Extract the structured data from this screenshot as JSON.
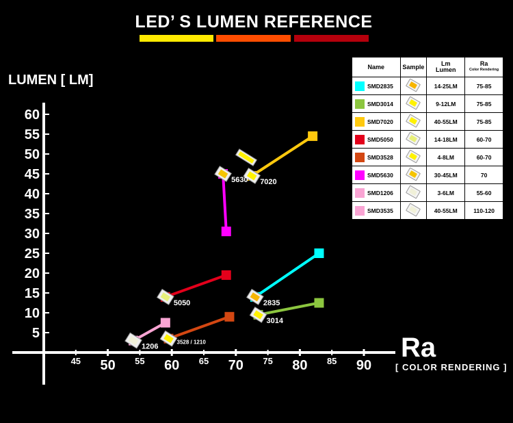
{
  "header": {
    "title": "LED’ S LUMEN REFERENCE",
    "bar_colors": [
      "#ffea00",
      "#ff4d00",
      "#b5000c"
    ]
  },
  "axes": {
    "ylabel": "LUMEN [ LM]",
    "xlabel": "Ra",
    "xlabel_sub": "[ COLOR RENDERING ]"
  },
  "legend": {
    "headers": {
      "name": "Name",
      "sample": "Sample",
      "lm": "Lm",
      "lm_sub": "Lumen",
      "ra": "Ra",
      "ra_sub": "Color Rendering"
    },
    "rows": [
      {
        "name": "SMD2835",
        "color": "#00ffff",
        "lm": "14-25LM",
        "ra": "75-85",
        "chip": "#f7b500"
      },
      {
        "name": "SMD3014",
        "color": "#8cc63f",
        "lm": "9-12LM",
        "ra": "75-85",
        "chip": "#fff200"
      },
      {
        "name": "SMD7020",
        "color": "#ffc90e",
        "lm": "40-55LM",
        "ra": "75-85",
        "chip": "#fff200"
      },
      {
        "name": "SMD5050",
        "color": "#e3001b",
        "lm": "14-18LM",
        "ra": "60-70",
        "chip": "#e8f07a"
      },
      {
        "name": "SMD3528",
        "color": "#d34712",
        "lm": "4-8LM",
        "ra": "60-70",
        "chip": "#fff200"
      },
      {
        "name": "SMD5630",
        "color": "#ff00ff",
        "lm": "30-45LM",
        "ra": "70",
        "chip": "#f5c400"
      },
      {
        "name": "SMD1206",
        "color": "#f9a4d3",
        "lm": "3-6LM",
        "ra": "55-60",
        "chip": "#f0f0d8"
      },
      {
        "name": "SMD3535",
        "color": "#f9a4d3",
        "lm": "40-55LM",
        "ra": "110-120",
        "chip": "#f0f0d8"
      }
    ]
  },
  "chart_data": {
    "type": "line",
    "title": "LED’ S LUMEN REFERENCE",
    "ylabel": "LUMEN [ LM]",
    "xlabel": "Ra [ COLOR RENDERING ]",
    "xlim": [
      40,
      95
    ],
    "ylim": [
      0,
      65
    ],
    "y_major_ticks": [
      "5",
      "10",
      "15",
      "20",
      "25",
      "30",
      "35",
      "40",
      "45",
      "50",
      "55",
      "60"
    ],
    "y_minor_ticks": [
      "5",
      "15",
      "25",
      "35",
      "45",
      "55"
    ],
    "x_major_ticks": [
      "50",
      "60",
      "70",
      "80",
      "90"
    ],
    "x_minor_ticks": [
      "45",
      "55",
      "65",
      "75",
      "85"
    ],
    "grid": false,
    "legend_position": "top-right",
    "series": [
      {
        "name": "SMD2835",
        "label": "2835",
        "color": "#00ffff",
        "points": [
          [
            73,
            14
          ],
          [
            83,
            25
          ]
        ],
        "chip": "#f7b500"
      },
      {
        "name": "SMD3014",
        "label": "3014",
        "color": "#8cc63f",
        "points": [
          [
            73.5,
            9.5
          ],
          [
            83,
            12.5
          ]
        ],
        "chip": "#fff200"
      },
      {
        "name": "SMD7020",
        "label": "7020",
        "color": "#ffc90e",
        "points": [
          [
            72.5,
            44.5
          ],
          [
            82,
            54.5
          ]
        ],
        "chip": "#fff200"
      },
      {
        "name": "SMD5050",
        "label": "5050",
        "color": "#e3001b",
        "points": [
          [
            59,
            14
          ],
          [
            68.5,
            19.5
          ]
        ],
        "chip": "#e8f07a"
      },
      {
        "name": "SMD3528",
        "label": "3528 / 1210",
        "color": "#d34712",
        "points": [
          [
            59.5,
            3.5
          ],
          [
            69,
            9
          ]
        ],
        "chip": "#fff200"
      },
      {
        "name": "SMD5630",
        "label": "5630",
        "color": "#ff00ff",
        "points": [
          [
            68,
            45
          ],
          [
            68.5,
            30.5
          ]
        ],
        "chip": "#f5c400"
      },
      {
        "name": "SMD1206",
        "label": "1206",
        "color": "#f9a4d3",
        "points": [
          [
            54,
            3
          ],
          [
            59,
            7.5
          ]
        ],
        "chip": "#f0f0d8"
      }
    ]
  }
}
